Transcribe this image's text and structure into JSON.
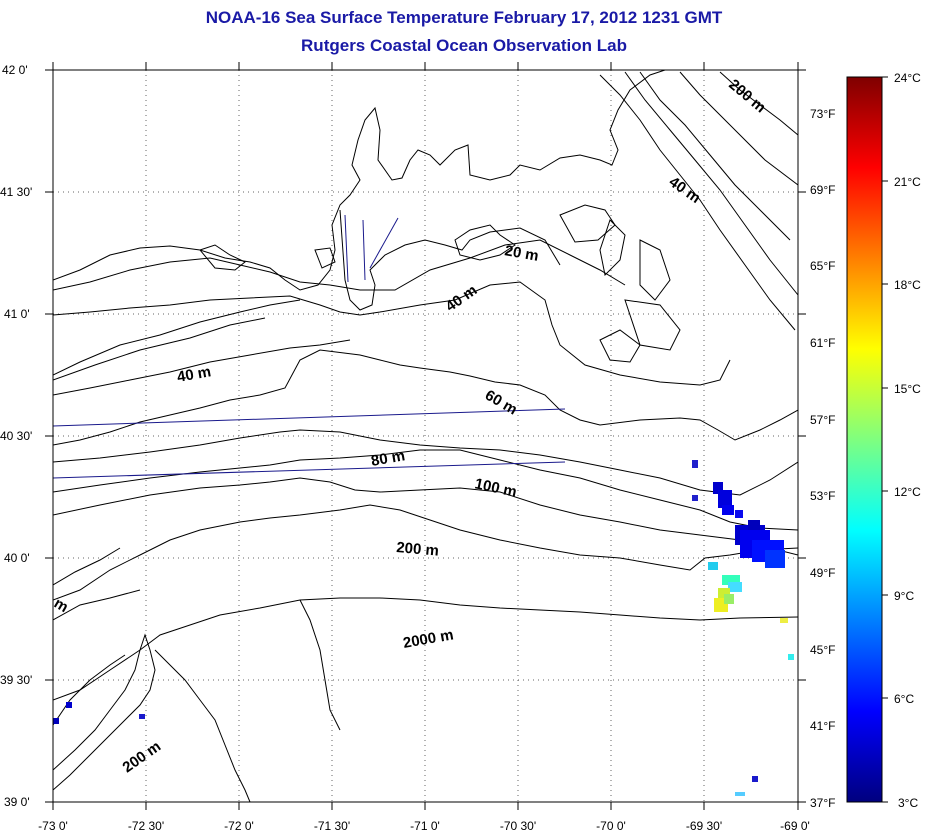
{
  "title": {
    "line1": "NOAA-16 Sea Surface Temperature February 17, 2012 1231 GMT",
    "line2": "Rutgers Coastal Ocean Observation Lab"
  },
  "map": {
    "lat_labels": [
      "42 0'",
      "41 30'",
      "41 0'",
      "40 30'",
      "40 0'",
      "39 30'",
      "39 0'"
    ],
    "lon_labels": [
      "-73 0'",
      "-72 30'",
      "-72 0'",
      "-71 30'",
      "-71 0'",
      "-70 30'",
      "-70 0'",
      "-69 30'",
      "-69 0'"
    ],
    "fahrenheit_labels": [
      "73°F",
      "69°F",
      "65°F",
      "61°F",
      "57°F",
      "53°F",
      "49°F",
      "45°F",
      "41°F",
      "37°F"
    ],
    "contour_labels": [
      "200 m",
      "40 m",
      "20 m",
      "40 m",
      "40 m",
      "60 m",
      "80 m",
      "100 m",
      "200 m",
      "2000 m",
      "200 m",
      "m"
    ]
  },
  "colorbar": {
    "celsius_labels": [
      "24°C",
      "21°C",
      "18°C",
      "15°C",
      "12°C",
      "9°C",
      "6°C",
      "3°C"
    ],
    "min_c": 3,
    "max_c": 24,
    "colors": [
      "#00007f",
      "#0000ff",
      "#007fff",
      "#00ffff",
      "#7fff7f",
      "#ffff00",
      "#ff7f00",
      "#ff0000",
      "#7f0000"
    ]
  }
}
